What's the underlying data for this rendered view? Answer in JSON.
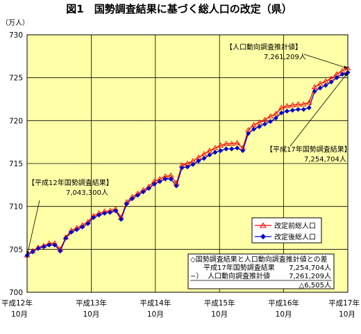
{
  "colors": {
    "plot_bg": "#ffffa8",
    "before": "#ff0000",
    "after": "#0000cc",
    "grid": "#000000"
  },
  "chart_data": {
    "type": "line",
    "title": "図1　国勢調査結果に基づく総人口の改定（県）",
    "ylabel": "（万人）",
    "ylim": [
      700,
      730
    ],
    "yticks": [
      700,
      705,
      710,
      715,
      720,
      725,
      730
    ],
    "x_tick_labels": [
      {
        "line1": "平成12年",
        "line2": "10月"
      },
      {
        "line1": "平成13年",
        "line2": "10月"
      },
      {
        "line1": "平成14年",
        "line2": "10月"
      },
      {
        "line1": "平成15年",
        "line2": "10月"
      },
      {
        "line1": "平成16年",
        "line2": "10月"
      },
      {
        "line1": "平成17年",
        "line2": "10月"
      }
    ],
    "grid": true,
    "series": [
      {
        "name": "改定前総人口",
        "marker": "triangle",
        "values": [
          704.3,
          704.8,
          705.2,
          705.4,
          705.7,
          705.7,
          705.0,
          706.4,
          707.2,
          707.5,
          707.8,
          708.2,
          708.9,
          709.2,
          709.4,
          709.5,
          709.7,
          708.7,
          710.5,
          711.1,
          711.5,
          711.9,
          712.3,
          712.9,
          713.2,
          713.5,
          713.6,
          712.7,
          714.8,
          715.0,
          715.3,
          715.7,
          716.1,
          716.5,
          716.8,
          717.1,
          717.3,
          717.3,
          717.4,
          716.8,
          718.9,
          719.5,
          719.8,
          720.1,
          720.5,
          720.8,
          721.5,
          721.7,
          721.8,
          721.9,
          721.9,
          722.1,
          723.9,
          724.3,
          724.6,
          724.9,
          725.4,
          725.8,
          726.1
        ]
      },
      {
        "name": "改定後総人口",
        "marker": "diamond",
        "values": [
          704.3,
          704.7,
          705.1,
          705.3,
          705.5,
          705.5,
          704.8,
          706.3,
          707.0,
          707.3,
          707.6,
          708.0,
          708.7,
          709.0,
          709.2,
          709.3,
          709.5,
          708.5,
          710.3,
          710.9,
          711.3,
          711.7,
          712.1,
          712.6,
          712.9,
          713.2,
          713.2,
          712.4,
          714.5,
          714.6,
          714.9,
          715.3,
          715.6,
          716.0,
          716.3,
          716.5,
          716.7,
          716.7,
          716.8,
          716.5,
          718.5,
          719.0,
          719.3,
          719.6,
          719.9,
          720.3,
          720.9,
          721.1,
          721.2,
          721.3,
          721.3,
          721.5,
          723.4,
          723.8,
          724.1,
          724.5,
          725.0,
          725.4,
          725.6
        ]
      }
    ],
    "annotations": [
      {
        "lines": [
          "【平成12年国勢調査結果】",
          "7,043,300人"
        ],
        "target_index": 0,
        "target_series": 1
      },
      {
        "lines": [
          "【人口動向調査推計値】",
          "7,261,209人"
        ],
        "target_index": 58,
        "target_series": 0
      },
      {
        "lines": [
          "【平成17年国勢調査結果】",
          "7,254,704人"
        ],
        "target_index": 58,
        "target_series": 1
      }
    ],
    "legend": {
      "position": "bottom-right"
    },
    "diff_box": {
      "title": "◇国勢調査結果と人口動向調査推計値との差",
      "row1": {
        "prefix": "",
        "label": "平成17年国勢調査結果",
        "value": "7,254,704人"
      },
      "row2": {
        "prefix": "−）",
        "label": "人口動向調査推計値",
        "value": "7,261,209人"
      },
      "result": "△6,505人"
    }
  }
}
